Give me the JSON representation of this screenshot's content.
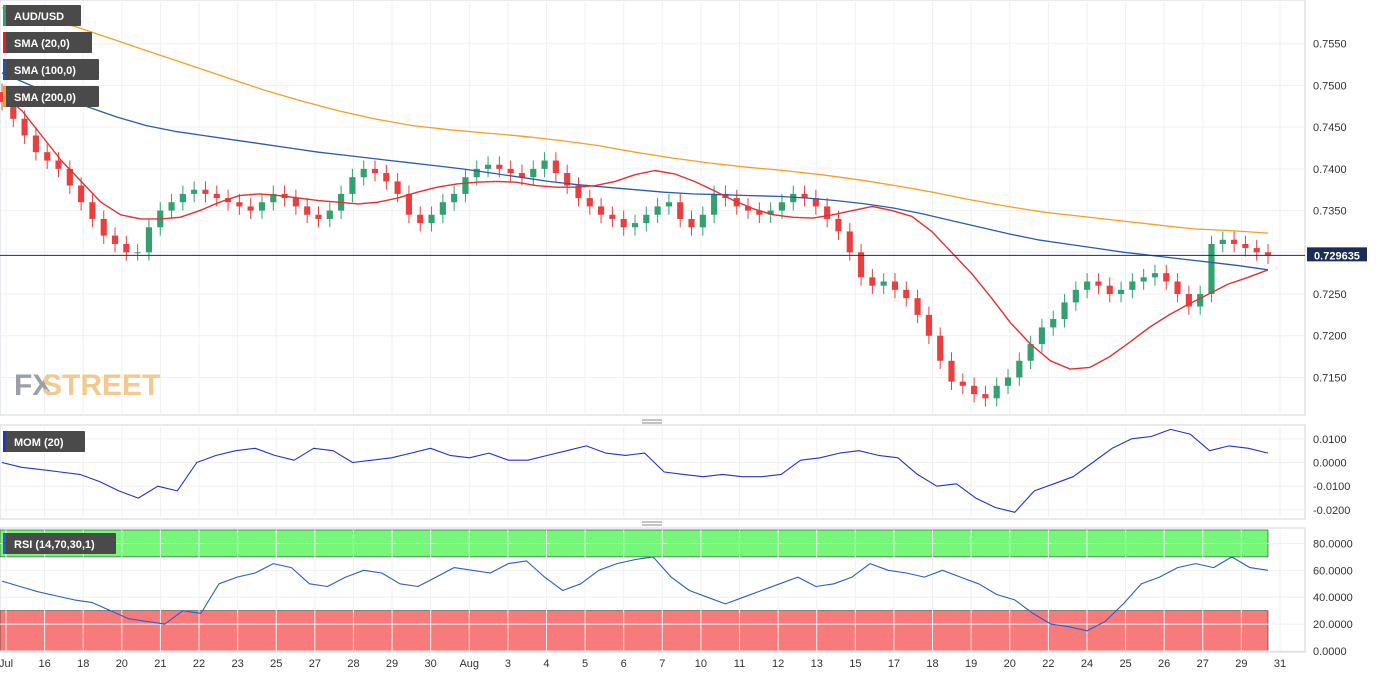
{
  "brand": {
    "logo_part1": "FX",
    "logo_part2": "STREET"
  },
  "price_panel": {
    "legend": [
      {
        "label": "AUD/USD",
        "color": "#33a070"
      },
      {
        "label": "SMA (20,0)",
        "color": "#dd2222"
      },
      {
        "label": "SMA (100,0)",
        "color": "#1f55a8"
      },
      {
        "label": "SMA (200,0)",
        "color": "#f59b1e"
      }
    ],
    "last_price": "0.729635",
    "y_ticks": [
      "0.7550",
      "0.7500",
      "0.7450",
      "0.7400",
      "0.7350",
      "0.7300",
      "0.7250",
      "0.7200",
      "0.7150"
    ]
  },
  "mom_panel": {
    "legend": "MOM (20)",
    "y_ticks": [
      "0.0100",
      "0.0000",
      "-0.0100",
      "-0.0200"
    ]
  },
  "rsi_panel": {
    "legend": "RSI (14,70,30,1)",
    "y_ticks": [
      "80.0000",
      "60.0000",
      "40.0000",
      "20.0000",
      "0.0000"
    ]
  },
  "x_ticks": [
    "Jul",
    "16",
    "18",
    "20",
    "21",
    "22",
    "23",
    "25",
    "27",
    "28",
    "29",
    "30",
    "Aug",
    "3",
    "4",
    "5",
    "6",
    "7",
    "10",
    "11",
    "12",
    "13",
    "15",
    "17",
    "18",
    "19",
    "20",
    "22",
    "24",
    "25",
    "26",
    "27",
    "29",
    "31"
  ],
  "colors": {
    "up": "#33a070",
    "down": "#e84040",
    "sma20": "#e53030",
    "sma100": "#2a5caa",
    "sma200": "#f5a024",
    "mom": "#2233cc",
    "rsi": "#2a5fc8",
    "overbought": "#77f77a",
    "oversold": "#f77b7b"
  },
  "chart_data": [
    {
      "type": "line",
      "title": "AUD/USD",
      "y_range": [
        0.7105,
        0.76
      ],
      "last_value": 0.729635,
      "series": [
        {
          "name": "AUD/USD",
          "values": [
            0.748,
            0.746,
            0.744,
            0.742,
            0.741,
            0.74,
            0.738,
            0.736,
            0.734,
            0.732,
            0.731,
            0.73,
            0.73,
            0.733,
            0.735,
            0.736,
            0.737,
            0.7375,
            0.737,
            0.7365,
            0.736,
            0.7355,
            0.735,
            0.736,
            0.737,
            0.7365,
            0.7355,
            0.7345,
            0.734,
            0.735,
            0.737,
            0.739,
            0.74,
            0.7395,
            0.7385,
            0.737,
            0.7345,
            0.7335,
            0.7345,
            0.736,
            0.737,
            0.739,
            0.74,
            0.7405,
            0.74,
            0.7395,
            0.739,
            0.74,
            0.741,
            0.7395,
            0.738,
            0.7365,
            0.7355,
            0.7345,
            0.734,
            0.733,
            0.7335,
            0.7345,
            0.7355,
            0.736,
            0.734,
            0.733,
            0.7345,
            0.737,
            0.7365,
            0.7355,
            0.735,
            0.7345,
            0.735,
            0.736,
            0.737,
            0.7365,
            0.7355,
            0.734,
            0.7325,
            0.73,
            0.727,
            0.726,
            0.7265,
            0.7255,
            0.7245,
            0.7225,
            0.72,
            0.717,
            0.7145,
            0.714,
            0.713,
            0.7125,
            0.714,
            0.715,
            0.717,
            0.719,
            0.721,
            0.722,
            0.724,
            0.7255,
            0.7265,
            0.726,
            0.725,
            0.7255,
            0.7265,
            0.727,
            0.7275,
            0.7265,
            0.725,
            0.7235,
            0.725,
            0.731,
            0.7315,
            0.731,
            0.7305,
            0.73,
            0.7296
          ]
        },
        {
          "name": "SMA (20,0)",
          "values": [
            0.749,
            0.747,
            0.744,
            0.741,
            0.7385,
            0.736,
            0.7345,
            0.734,
            0.734,
            0.7342,
            0.735,
            0.736,
            0.7368,
            0.737,
            0.7368,
            0.7365,
            0.7362,
            0.736,
            0.7358,
            0.736,
            0.7365,
            0.7372,
            0.7378,
            0.7382,
            0.7384,
            0.7385,
            0.7384,
            0.738,
            0.7378,
            0.7378,
            0.738,
            0.7385,
            0.7393,
            0.7398,
            0.7394,
            0.7385,
            0.7374,
            0.7362,
            0.7352,
            0.7345,
            0.7342,
            0.7341,
            0.7345,
            0.735,
            0.7355,
            0.735,
            0.7343,
            0.7325,
            0.73,
            0.7275,
            0.7246,
            0.7215,
            0.719,
            0.717,
            0.716,
            0.7162,
            0.7175,
            0.7192,
            0.721,
            0.7225,
            0.7238,
            0.725,
            0.7262,
            0.727,
            0.7279
          ]
        },
        {
          "name": "SMA (100,0)",
          "values": [
            0.7515,
            0.75,
            0.7487,
            0.7474,
            0.7462,
            0.7452,
            0.7445,
            0.744,
            0.7435,
            0.743,
            0.7425,
            0.742,
            0.7416,
            0.7412,
            0.7408,
            0.7404,
            0.74,
            0.7395,
            0.739,
            0.7385,
            0.7381,
            0.7378,
            0.7375,
            0.7372,
            0.737,
            0.7369,
            0.7368,
            0.7367,
            0.7365,
            0.7362,
            0.7358,
            0.7353,
            0.7346,
            0.7338,
            0.733,
            0.7322,
            0.7315,
            0.731,
            0.7305,
            0.73,
            0.7296,
            0.7292,
            0.7288,
            0.7284,
            0.7279
          ]
        },
        {
          "name": "SMA (200,0)",
          "values": [
            0.7593,
            0.7582,
            0.757,
            0.7555,
            0.754,
            0.7525,
            0.751,
            0.7495,
            0.7482,
            0.747,
            0.746,
            0.7452,
            0.7447,
            0.7443,
            0.7439,
            0.7434,
            0.7428,
            0.742,
            0.7413,
            0.7407,
            0.7402,
            0.7398,
            0.7393,
            0.7387,
            0.738,
            0.7372,
            0.7363,
            0.7355,
            0.7348,
            0.7343,
            0.7338,
            0.7333,
            0.7328,
            0.7326,
            0.7323
          ]
        }
      ]
    },
    {
      "type": "line",
      "title": "MOM (20)",
      "y_range": [
        -0.023,
        0.015
      ],
      "series": [
        {
          "name": "MOM (20)",
          "values": [
            0.0,
            -0.002,
            -0.003,
            -0.004,
            -0.005,
            -0.008,
            -0.012,
            -0.015,
            -0.01,
            -0.012,
            0.0,
            0.003,
            0.005,
            0.006,
            0.003,
            0.001,
            0.006,
            0.005,
            0.0,
            0.001,
            0.002,
            0.004,
            0.006,
            0.003,
            0.002,
            0.004,
            0.001,
            0.001,
            0.003,
            0.005,
            0.007,
            0.004,
            0.003,
            0.004,
            -0.004,
            -0.005,
            -0.006,
            -0.005,
            -0.006,
            -0.006,
            -0.005,
            0.001,
            0.002,
            0.004,
            0.005,
            0.003,
            0.002,
            -0.005,
            -0.01,
            -0.009,
            -0.015,
            -0.019,
            -0.021,
            -0.012,
            -0.009,
            -0.006,
            0.0,
            0.006,
            0.01,
            0.011,
            0.014,
            0.012,
            0.005,
            0.007,
            0.006,
            0.004
          ]
        }
      ]
    },
    {
      "type": "line",
      "title": "RSI (14,70,30,1)",
      "y_range": [
        0,
        90
      ],
      "overbought": 70,
      "oversold": 30,
      "series": [
        {
          "name": "RSI (14,70,30,1)",
          "values": [
            52,
            48,
            44,
            41,
            38,
            36,
            30,
            24,
            22,
            20,
            30,
            28,
            50,
            55,
            58,
            65,
            62,
            50,
            48,
            55,
            60,
            58,
            50,
            48,
            55,
            62,
            60,
            58,
            65,
            67,
            55,
            45,
            50,
            60,
            65,
            68,
            70,
            55,
            45,
            40,
            35,
            40,
            45,
            50,
            55,
            48,
            50,
            55,
            65,
            60,
            58,
            55,
            60,
            55,
            50,
            42,
            38,
            28,
            20,
            18,
            15,
            22,
            35,
            50,
            55,
            62,
            65,
            62,
            70,
            62,
            60
          ]
        }
      ]
    }
  ]
}
